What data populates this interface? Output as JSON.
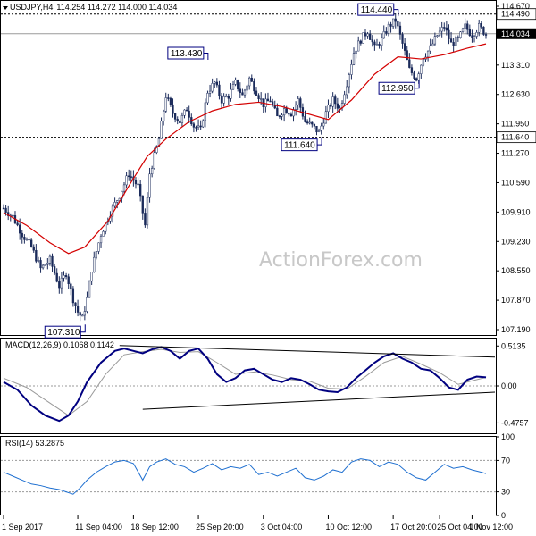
{
  "header": {
    "symbol": "USDJPY,H4",
    "ohlc": "114.254 114.272 114.000 114.034",
    "macd_label": "MACD(12,26,9) 0.1068 0.1142",
    "rsi_label": "RSI(14) 53.2875"
  },
  "watermark": "ActionForex.com",
  "colors": {
    "background": "#ffffff",
    "candles": "#1a2a5a",
    "ma": "#d40000",
    "macd_line": "#000080",
    "signal_line": "#9a9a9a",
    "rsi_line": "#1e6fd0",
    "trendline": "#000000",
    "level_box_border": "#000080",
    "current_price_box": "#000000",
    "reference_line": "#000000"
  },
  "chart_data": [
    {
      "type": "candlestick",
      "title": "USDJPY,H4",
      "ylim": [
        107.19,
        114.67
      ],
      "y_ticks": [
        "114.670",
        "114.490",
        "114.034",
        "113.310",
        "112.630",
        "111.950",
        "111.640",
        "111.270",
        "110.590",
        "109.910",
        "109.230",
        "108.550",
        "107.870",
        "107.190"
      ],
      "x_ticks": [
        "1 Sep 2017",
        "11 Sep 04:00",
        "18 Sep 12:00",
        "25 Sep 20:00",
        "3 Oct 04:00",
        "10 Oct 12:00",
        "17 Oct 20:00",
        "25 Oct 04:00",
        "1 Nov 12:00"
      ],
      "current_price": "114.034",
      "reference_levels": [
        "114.490",
        "111.640"
      ],
      "annotations": [
        {
          "text": "107.310",
          "value": 107.31,
          "kind": "low"
        },
        {
          "text": "113.430",
          "value": 113.43,
          "kind": "high"
        },
        {
          "text": "111.640",
          "value": 111.64,
          "kind": "low"
        },
        {
          "text": "114.440",
          "value": 114.44,
          "kind": "high"
        },
        {
          "text": "112.950",
          "value": 112.95,
          "kind": "low"
        }
      ],
      "close_path": [
        [
          0,
          110.0
        ],
        [
          4,
          109.8
        ],
        [
          8,
          109.4
        ],
        [
          12,
          109.1
        ],
        [
          16,
          108.6
        ],
        [
          20,
          108.8
        ],
        [
          24,
          108.2
        ],
        [
          27,
          108.5
        ],
        [
          30,
          107.9
        ],
        [
          32,
          107.6
        ],
        [
          34,
          107.45
        ],
        [
          36,
          107.9
        ],
        [
          38,
          108.6
        ],
        [
          42,
          109.4
        ],
        [
          46,
          109.9
        ],
        [
          50,
          110.3
        ],
        [
          54,
          110.8
        ],
        [
          58,
          110.5
        ],
        [
          61,
          109.6
        ],
        [
          63,
          110.8
        ],
        [
          67,
          111.6
        ],
        [
          70,
          112.6
        ],
        [
          73,
          112.2
        ],
        [
          76,
          112.0
        ],
        [
          79,
          112.3
        ],
        [
          82,
          111.9
        ],
        [
          85,
          111.8
        ],
        [
          88,
          112.7
        ],
        [
          91,
          112.9
        ],
        [
          94,
          112.5
        ],
        [
          97,
          112.6
        ],
        [
          100,
          112.9
        ],
        [
          103,
          112.6
        ],
        [
          106,
          113.0
        ],
        [
          109,
          112.7
        ],
        [
          112,
          112.4
        ],
        [
          115,
          112.5
        ],
        [
          118,
          112.1
        ],
        [
          121,
          112.3
        ],
        [
          124,
          112.2
        ],
        [
          127,
          112.5
        ],
        [
          130,
          112.0
        ],
        [
          133,
          111.9
        ],
        [
          136,
          111.75
        ],
        [
          139,
          112.2
        ],
        [
          142,
          112.5
        ],
        [
          145,
          112.3
        ],
        [
          148,
          112.9
        ],
        [
          151,
          113.6
        ],
        [
          154,
          113.9
        ],
        [
          157,
          114.1
        ],
        [
          160,
          113.7
        ],
        [
          163,
          113.9
        ],
        [
          166,
          114.2
        ],
        [
          169,
          114.35
        ],
        [
          172,
          113.8
        ],
        [
          175,
          113.2
        ],
        [
          178,
          113.0
        ],
        [
          181,
          113.5
        ],
        [
          184,
          113.7
        ],
        [
          187,
          114.0
        ],
        [
          190,
          114.2
        ],
        [
          193,
          113.8
        ],
        [
          196,
          113.9
        ],
        [
          199,
          114.2
        ],
        [
          202,
          114.0
        ],
        [
          205,
          114.2
        ],
        [
          208,
          114.03
        ]
      ],
      "ma_path": [
        [
          0,
          109.9
        ],
        [
          10,
          109.6
        ],
        [
          20,
          109.2
        ],
        [
          28,
          108.95
        ],
        [
          35,
          109.1
        ],
        [
          45,
          109.7
        ],
        [
          55,
          110.6
        ],
        [
          62,
          111.2
        ],
        [
          70,
          111.6
        ],
        [
          80,
          112.0
        ],
        [
          90,
          112.25
        ],
        [
          100,
          112.4
        ],
        [
          110,
          112.45
        ],
        [
          120,
          112.35
        ],
        [
          130,
          112.2
        ],
        [
          140,
          112.05
        ],
        [
          150,
          112.5
        ],
        [
          160,
          113.1
        ],
        [
          170,
          113.5
        ],
        [
          180,
          113.45
        ],
        [
          190,
          113.55
        ],
        [
          200,
          113.7
        ],
        [
          208,
          113.8
        ]
      ]
    },
    {
      "type": "line",
      "title": "MACD(12,26,9)",
      "ylim": [
        -0.62,
        0.62
      ],
      "y_ticks": [
        "0.5135",
        "0.00",
        "-0.4757"
      ],
      "series": [
        {
          "name": "MACD",
          "points": [
            [
              0,
              0.05
            ],
            [
              6,
              -0.05
            ],
            [
              12,
              -0.25
            ],
            [
              18,
              -0.38
            ],
            [
              24,
              -0.45
            ],
            [
              28,
              -0.38
            ],
            [
              32,
              -0.2
            ],
            [
              36,
              0.05
            ],
            [
              42,
              0.3
            ],
            [
              48,
              0.45
            ],
            [
              52,
              0.48
            ],
            [
              56,
              0.45
            ],
            [
              60,
              0.42
            ],
            [
              64,
              0.47
            ],
            [
              68,
              0.5
            ],
            [
              72,
              0.45
            ],
            [
              76,
              0.35
            ],
            [
              80,
              0.45
            ],
            [
              84,
              0.48
            ],
            [
              88,
              0.35
            ],
            [
              92,
              0.15
            ],
            [
              96,
              0.05
            ],
            [
              100,
              0.1
            ],
            [
              104,
              0.2
            ],
            [
              108,
              0.22
            ],
            [
              112,
              0.15
            ],
            [
              116,
              0.08
            ],
            [
              120,
              0.05
            ],
            [
              124,
              0.1
            ],
            [
              128,
              0.08
            ],
            [
              132,
              0.02
            ],
            [
              136,
              -0.05
            ],
            [
              140,
              -0.07
            ],
            [
              144,
              -0.08
            ],
            [
              148,
              -0.02
            ],
            [
              152,
              0.1
            ],
            [
              156,
              0.2
            ],
            [
              160,
              0.3
            ],
            [
              164,
              0.38
            ],
            [
              168,
              0.42
            ],
            [
              172,
              0.35
            ],
            [
              176,
              0.3
            ],
            [
              180,
              0.22
            ],
            [
              184,
              0.2
            ],
            [
              188,
              0.1
            ],
            [
              192,
              -0.02
            ],
            [
              196,
              -0.05
            ],
            [
              200,
              0.08
            ],
            [
              204,
              0.12
            ],
            [
              208,
              0.11
            ]
          ]
        },
        {
          "name": "Signal",
          "points": [
            [
              0,
              0.1
            ],
            [
              10,
              -0.02
            ],
            [
              20,
              -0.22
            ],
            [
              28,
              -0.38
            ],
            [
              36,
              -0.2
            ],
            [
              44,
              0.15
            ],
            [
              52,
              0.4
            ],
            [
              60,
              0.44
            ],
            [
              68,
              0.47
            ],
            [
              76,
              0.43
            ],
            [
              84,
              0.44
            ],
            [
              92,
              0.3
            ],
            [
              100,
              0.15
            ],
            [
              108,
              0.18
            ],
            [
              116,
              0.14
            ],
            [
              124,
              0.08
            ],
            [
              132,
              0.06
            ],
            [
              140,
              -0.03
            ],
            [
              148,
              -0.04
            ],
            [
              156,
              0.12
            ],
            [
              164,
              0.3
            ],
            [
              172,
              0.38
            ],
            [
              180,
              0.28
            ],
            [
              188,
              0.17
            ],
            [
              196,
              0.02
            ],
            [
              204,
              0.08
            ],
            [
              208,
              0.11
            ]
          ]
        }
      ],
      "trendlines": [
        {
          "from": [
            50,
            0.52
          ],
          "to": [
            208,
            0.37
          ]
        },
        {
          "from": [
            60,
            -0.3
          ],
          "to": [
            208,
            -0.08
          ]
        }
      ]
    },
    {
      "type": "line",
      "title": "RSI(14)",
      "ylim": [
        0,
        100
      ],
      "y_ticks": [
        "100",
        "70",
        "30",
        "0"
      ],
      "series": [
        {
          "name": "RSI",
          "points": [
            [
              0,
              55
            ],
            [
              4,
              50
            ],
            [
              8,
              45
            ],
            [
              12,
              40
            ],
            [
              16,
              38
            ],
            [
              20,
              35
            ],
            [
              24,
              33
            ],
            [
              27,
              30
            ],
            [
              30,
              27
            ],
            [
              33,
              35
            ],
            [
              36,
              45
            ],
            [
              40,
              55
            ],
            [
              44,
              62
            ],
            [
              48,
              68
            ],
            [
              52,
              70
            ],
            [
              56,
              66
            ],
            [
              60,
              45
            ],
            [
              63,
              62
            ],
            [
              66,
              68
            ],
            [
              70,
              72
            ],
            [
              74,
              65
            ],
            [
              78,
              62
            ],
            [
              82,
              55
            ],
            [
              86,
              60
            ],
            [
              90,
              66
            ],
            [
              94,
              58
            ],
            [
              98,
              62
            ],
            [
              102,
              60
            ],
            [
              106,
              65
            ],
            [
              110,
              52
            ],
            [
              114,
              55
            ],
            [
              118,
              50
            ],
            [
              122,
              55
            ],
            [
              126,
              60
            ],
            [
              130,
              48
            ],
            [
              134,
              45
            ],
            [
              138,
              50
            ],
            [
              142,
              58
            ],
            [
              146,
              55
            ],
            [
              150,
              68
            ],
            [
              154,
              72
            ],
            [
              158,
              70
            ],
            [
              162,
              62
            ],
            [
              166,
              68
            ],
            [
              170,
              65
            ],
            [
              174,
              55
            ],
            [
              178,
              48
            ],
            [
              182,
              45
            ],
            [
              186,
              55
            ],
            [
              190,
              65
            ],
            [
              194,
              60
            ],
            [
              198,
              62
            ],
            [
              202,
              58
            ],
            [
              206,
              55
            ],
            [
              208,
              53.29
            ]
          ]
        }
      ]
    }
  ]
}
